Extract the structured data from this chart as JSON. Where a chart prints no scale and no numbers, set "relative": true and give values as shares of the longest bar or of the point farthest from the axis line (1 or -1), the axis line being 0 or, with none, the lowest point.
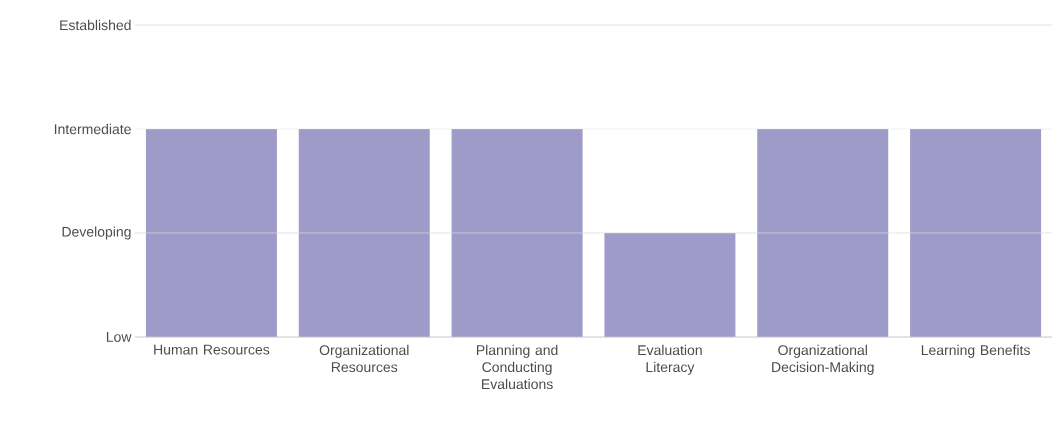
{
  "chart_data": {
    "type": "bar",
    "relative": true,
    "categories": [
      "Human Resources",
      "Organizational Resources",
      "Planning and Conducting Evaluations",
      "Evaluation Literacy",
      "Organizational Decision-Making",
      "Learning Benefits"
    ],
    "values": [
      1,
      1,
      1,
      0.5,
      1,
      1
    ],
    "color": "#9f9bc9",
    "ref_lines": [
      {
        "axis": "y",
        "value": 0,
        "label": "Low",
        "color": "#d9d9d9"
      },
      {
        "axis": "y",
        "value": 0.5,
        "label": "Developing",
        "color": "#d9d9d9"
      },
      {
        "axis": "y",
        "value": 1,
        "label": "Intermediate",
        "color": "#d9d9d9"
      },
      {
        "axis": "y",
        "value": 1.5,
        "label": "Established",
        "color": "#d9d9d9"
      }
    ]
  }
}
